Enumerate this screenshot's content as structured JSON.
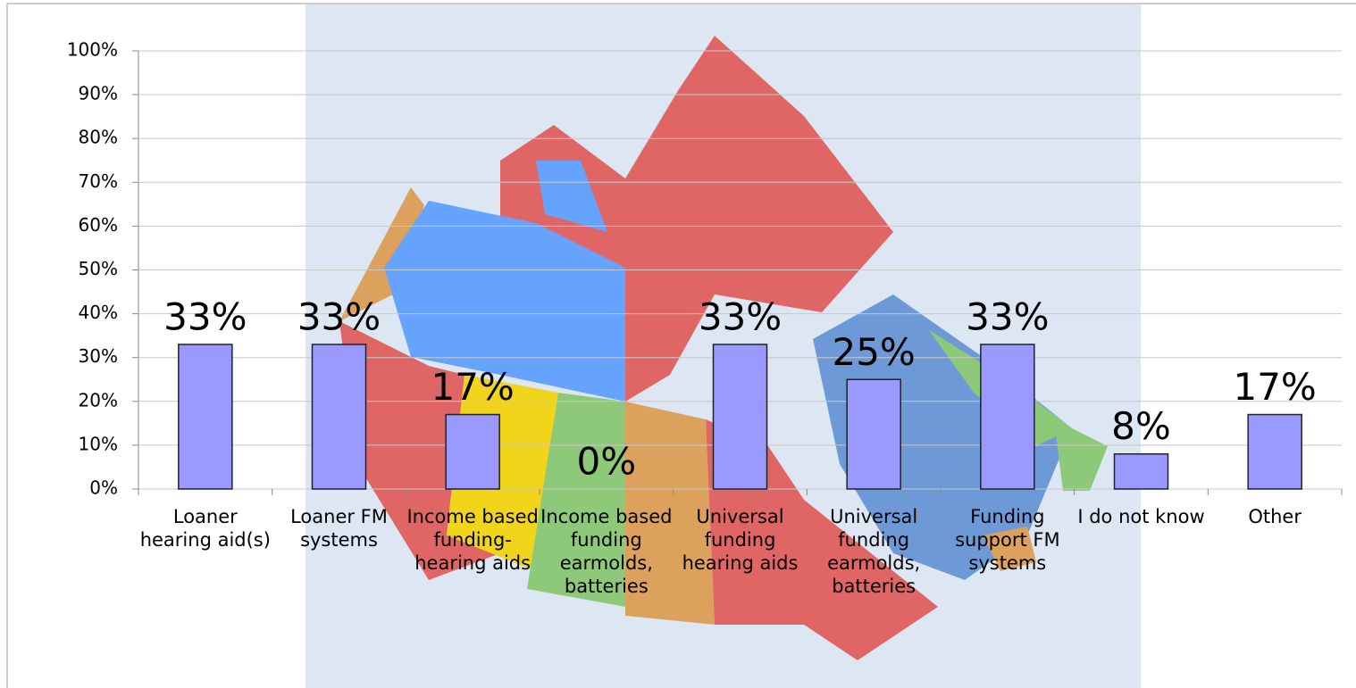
{
  "chart_data": {
    "type": "bar",
    "categories": [
      "Loaner hearing aid(s)",
      "Loaner FM systems",
      "Income based funding-hearing aids",
      "Income based funding earmolds, batteries",
      "Universal funding hearing aids",
      "Universal funding earmolds, batteries",
      "Funding support FM systems",
      "I do not know",
      "Other"
    ],
    "values": [
      33,
      33,
      17,
      0,
      33,
      25,
      33,
      8,
      17
    ],
    "value_labels": [
      "33%",
      "33%",
      "17%",
      "0%",
      "33%",
      "25%",
      "33%",
      "8%",
      "17%"
    ],
    "color": "#9999ff",
    "ylim": [
      0,
      100
    ],
    "yticks": [
      {
        "value": 0,
        "label": "0%"
      },
      {
        "value": 10,
        "label": "10%"
      },
      {
        "value": 20,
        "label": "20%"
      },
      {
        "value": 30,
        "label": "30%"
      },
      {
        "value": 40,
        "label": "40%"
      },
      {
        "value": 50,
        "label": "50%"
      },
      {
        "value": 60,
        "label": "60%"
      },
      {
        "value": 70,
        "label": "70%"
      },
      {
        "value": 80,
        "label": "80%"
      },
      {
        "value": 90,
        "label": "90%"
      },
      {
        "value": 100,
        "label": "100%"
      }
    ],
    "grid": true
  }
}
